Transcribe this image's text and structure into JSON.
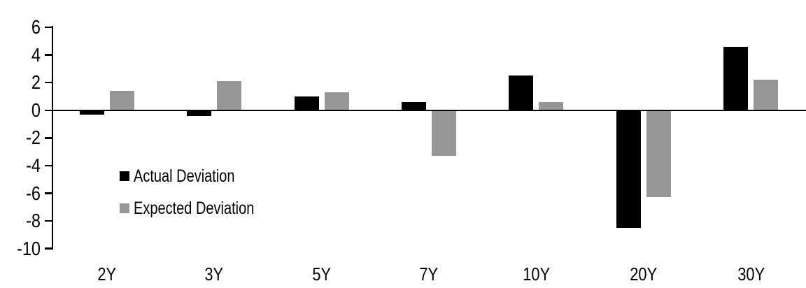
{
  "chart_data": {
    "type": "bar",
    "title": "",
    "xlabel": "",
    "ylabel": "",
    "categories": [
      "2Y",
      "3Y",
      "5Y",
      "7Y",
      "10Y",
      "20Y",
      "30Y"
    ],
    "series": [
      {
        "name": "Actual Deviation",
        "color": "#000000",
        "values": [
          -0.3,
          -0.4,
          1.0,
          0.6,
          2.5,
          -8.5,
          4.6
        ]
      },
      {
        "name": "Expected Deviation",
        "color": "#969696",
        "values": [
          1.4,
          2.1,
          1.3,
          -3.3,
          0.6,
          -6.3,
          2.2
        ]
      }
    ],
    "ylim": [
      -10,
      6
    ],
    "yticks": [
      6,
      4,
      2,
      0,
      -2,
      -4,
      -6,
      -8,
      -10
    ],
    "grid": false,
    "legend_position": "center-left",
    "axis_color": "#000000",
    "background_color": "#ffffff"
  }
}
